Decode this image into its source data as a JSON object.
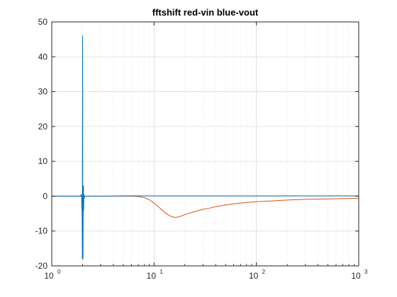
{
  "chart_data": {
    "type": "line",
    "title": "fftshift red-vin blue-vout",
    "xlabel": "",
    "ylabel": "",
    "x_scale": "log",
    "xlim": [
      1,
      1000
    ],
    "ylim": [
      -20,
      50
    ],
    "grid": true,
    "x_ticks": [
      {
        "base": "10",
        "exp": "0",
        "value": 1
      },
      {
        "base": "10",
        "exp": "1",
        "value": 10
      },
      {
        "base": "10",
        "exp": "2",
        "value": 100
      },
      {
        "base": "10",
        "exp": "3",
        "value": 1000
      }
    ],
    "y_ticks": [
      "50",
      "40",
      "30",
      "20",
      "10",
      "0",
      "-10",
      "-20"
    ],
    "series": [
      {
        "color": "#d95319",
        "x": [
          1,
          2,
          3,
          4,
          5,
          6,
          7,
          8,
          9,
          10,
          11,
          12,
          13,
          14,
          15,
          16,
          17,
          18,
          20,
          22,
          25,
          30,
          35,
          40,
          50,
          60,
          80,
          100,
          150,
          200,
          300,
          500,
          700,
          1000
        ],
        "y": [
          0,
          0,
          0,
          0,
          0,
          0,
          -0.1,
          -0.4,
          -1.0,
          -2.0,
          -3.0,
          -4.0,
          -4.9,
          -5.5,
          -5.9,
          -6.1,
          -6.0,
          -5.8,
          -5.3,
          -4.9,
          -4.4,
          -3.8,
          -3.4,
          -3.0,
          -2.5,
          -2.2,
          -1.8,
          -1.6,
          -1.3,
          -1.1,
          -0.9,
          -0.8,
          -0.7,
          -0.6
        ]
      },
      {
        "color": "#0072bd",
        "x": [
          1,
          1.5,
          1.9,
          1.95,
          1.98,
          1.99,
          2.0,
          2.005,
          2.01,
          2.02,
          2.03,
          2.04,
          2.05,
          2.06,
          2.08,
          2.1,
          2.2,
          3,
          5,
          10,
          20,
          50,
          100,
          200,
          500,
          1000
        ],
        "y": [
          0,
          0,
          0,
          0.5,
          -5,
          -18,
          46,
          30,
          -15,
          -18,
          -5,
          3,
          -4,
          0.5,
          -0.5,
          0,
          0,
          0,
          0.1,
          0.1,
          0.1,
          0.1,
          0.1,
          0.1,
          0.1,
          0.1
        ]
      }
    ]
  }
}
